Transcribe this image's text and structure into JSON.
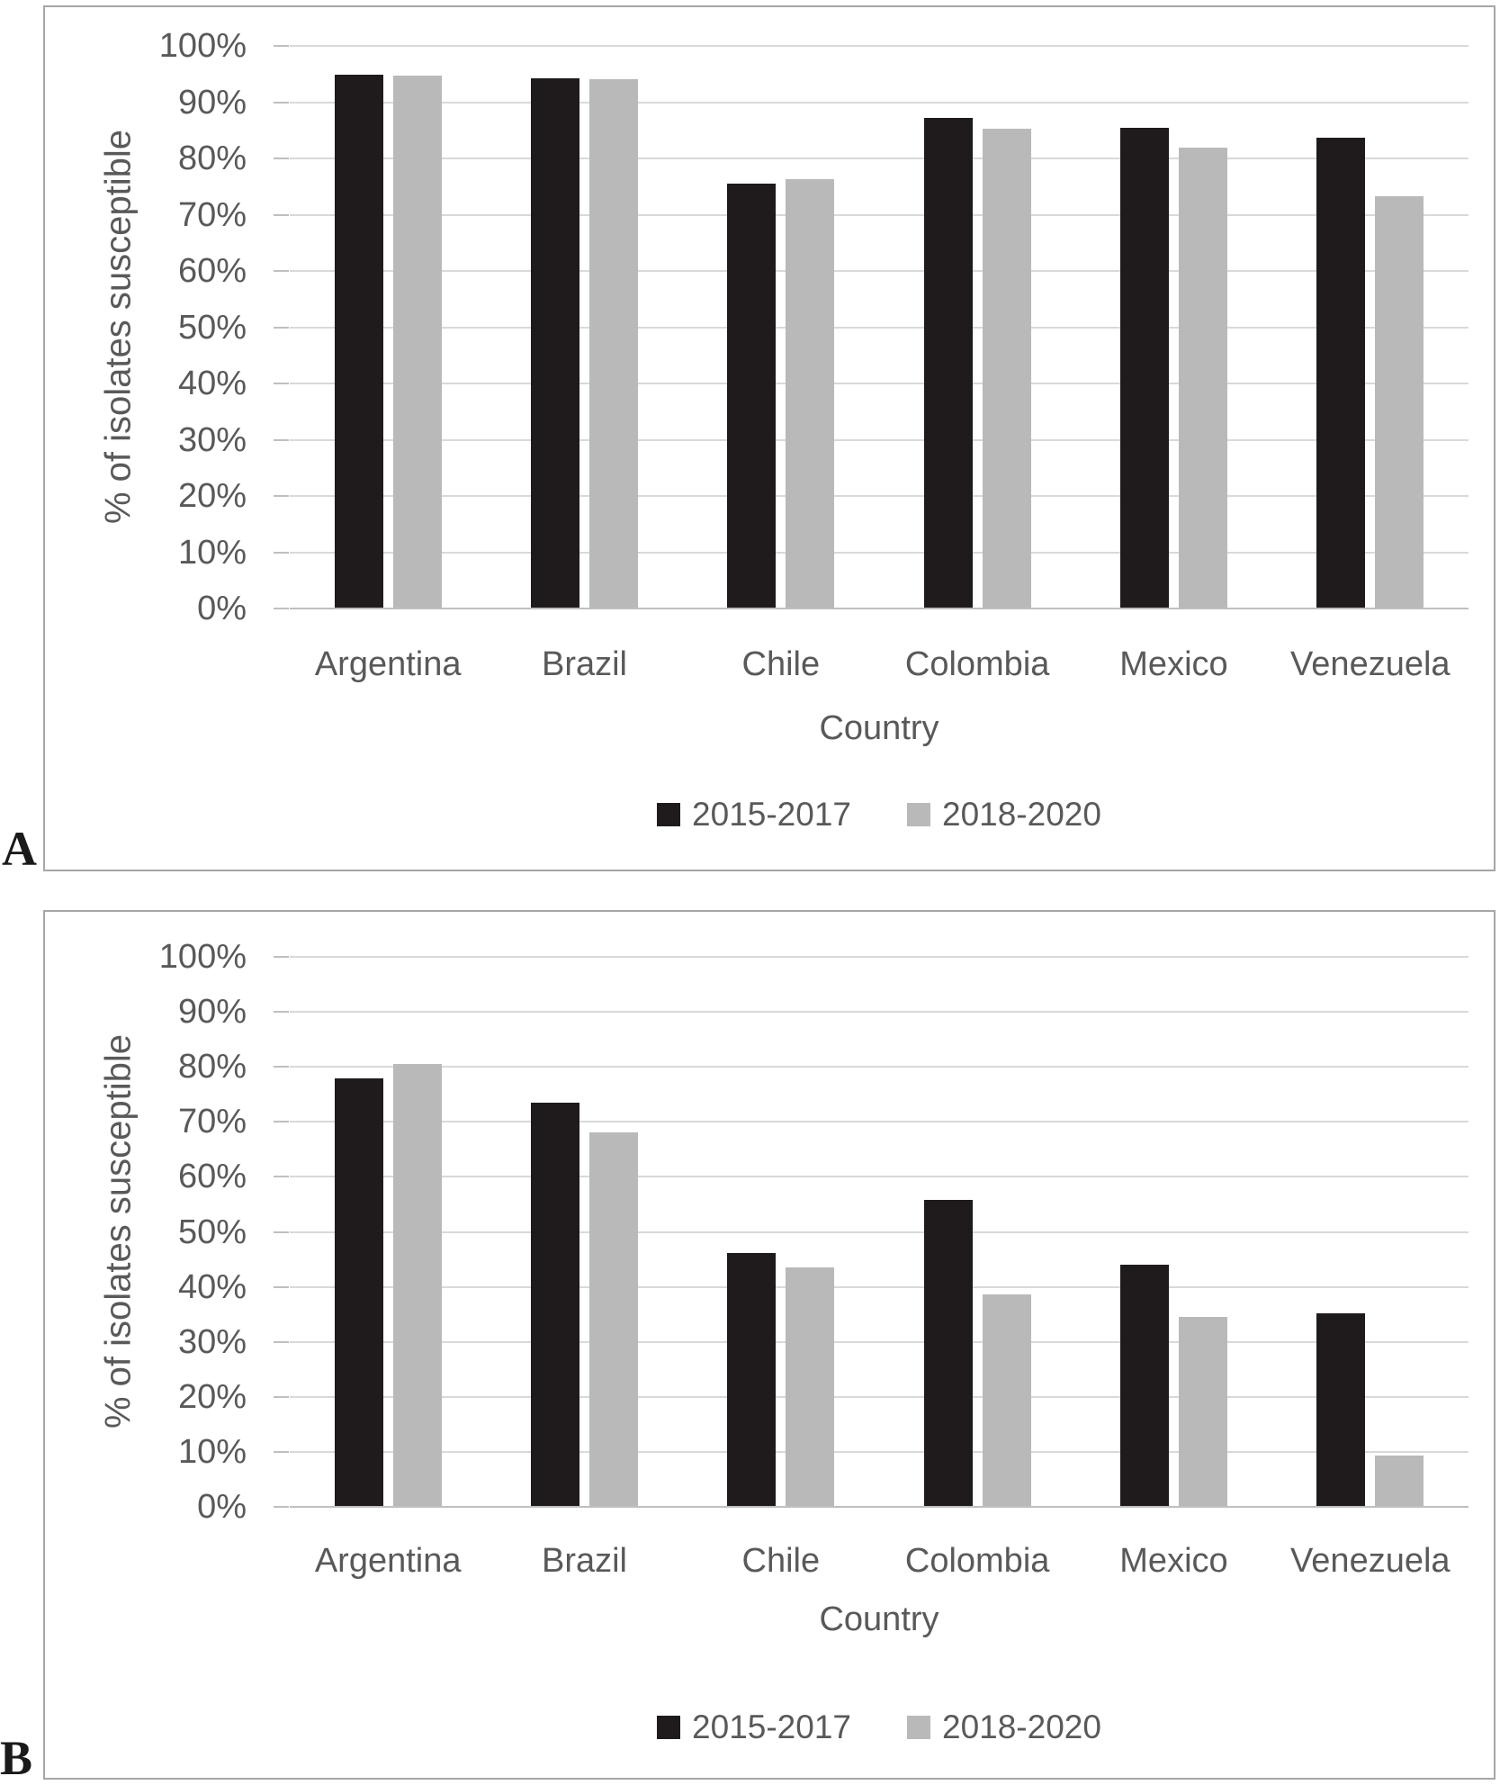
{
  "panel_labels": [
    "A",
    "B"
  ],
  "colors": {
    "bar_dark": "#1f1b1c",
    "bar_gray": "#b9b9b9",
    "gridline": "#d9d9d9",
    "axis_line": "#bfbfbf",
    "text": "#595959",
    "panel_border": "#a6a6a6"
  },
  "legend": {
    "items": [
      {
        "label": "2015-2017",
        "color": "#1f1b1c"
      },
      {
        "label": "2018-2020",
        "color": "#b9b9b9"
      }
    ]
  },
  "chart_data": [
    {
      "id": "A",
      "type": "bar",
      "title": "",
      "categories": [
        "Argentina",
        "Brazil",
        "Chile",
        "Colombia",
        "Mexico",
        "Venezuela"
      ],
      "series": [
        {
          "name": "2015-2017",
          "color": "#1f1b1c",
          "values": [
            94.7,
            94.1,
            75.3,
            87.1,
            85.3,
            83.5
          ]
        },
        {
          "name": "2018-2020",
          "color": "#b9b9b9",
          "values": [
            94.5,
            94.0,
            76.2,
            85.2,
            81.7,
            73.2
          ]
        }
      ],
      "xlabel": "Country",
      "ylabel": "% of isolates susceptible",
      "ylim": [
        0,
        100
      ],
      "y_tick_step": 10,
      "y_ticks": [
        "100%",
        "90%",
        "80%",
        "70%",
        "60%",
        "50%",
        "40%",
        "30%",
        "20%",
        "10%",
        "0%"
      ],
      "grid": true,
      "legend_position": "bottom"
    },
    {
      "id": "B",
      "type": "bar",
      "title": "",
      "categories": [
        "Argentina",
        "Brazil",
        "Chile",
        "Colombia",
        "Mexico",
        "Venezuela"
      ],
      "series": [
        {
          "name": "2015-2017",
          "color": "#1f1b1c",
          "values": [
            77.7,
            73.3,
            46.0,
            55.7,
            43.8,
            35.1
          ]
        },
        {
          "name": "2018-2020",
          "color": "#b9b9b9",
          "values": [
            80.4,
            67.9,
            43.4,
            38.5,
            34.3,
            9.2
          ]
        }
      ],
      "xlabel": "Country",
      "ylabel": "% of isolates susceptible",
      "ylim": [
        0,
        100
      ],
      "y_tick_step": 10,
      "y_ticks": [
        "100%",
        "90%",
        "80%",
        "70%",
        "60%",
        "50%",
        "40%",
        "30%",
        "20%",
        "10%",
        "0%"
      ],
      "grid": true,
      "legend_position": "bottom"
    }
  ]
}
